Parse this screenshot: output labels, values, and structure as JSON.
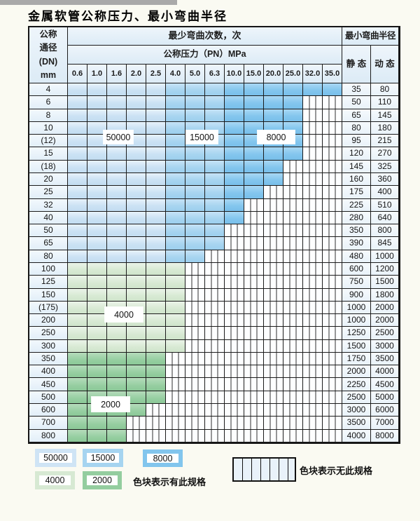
{
  "title": "金属软管公称压力、最小弯曲半径",
  "colors": {
    "cycles_50000": "#cfe4f5",
    "cycles_15000": "#a6d4f0",
    "cycles_8000": "#82c5ed",
    "cycles_4000": "#d7e9d3",
    "cycles_2000": "#94cd9f",
    "grid_line": "#1b1b1b"
  },
  "table": {
    "dn_header": "公称\n通径\n(DN)\nmm",
    "cycles_header": "最少弯曲次数，次",
    "pressure_header": "公称压力（PN）MPa",
    "radius_header": "最小弯曲半径",
    "static_label": "静 态",
    "dynamic_label": "动 态",
    "pressures": [
      "0.6",
      "1.0",
      "1.6",
      "2.0",
      "2.5",
      "4.0",
      "5.0",
      "6.3",
      "10.0",
      "15.0",
      "20.0",
      "25.0",
      "32.0",
      "35.0"
    ],
    "rows": [
      {
        "dn": "4",
        "max_pn": "35.0",
        "cols_available": 14,
        "zone": "blue",
        "static": "35",
        "dynamic": "80"
      },
      {
        "dn": "6",
        "max_pn": "25.0",
        "cols_available": 12,
        "zone": "blue",
        "static": "50",
        "dynamic": "110"
      },
      {
        "dn": "8",
        "max_pn": "25.0",
        "cols_available": 12,
        "zone": "blue",
        "static": "65",
        "dynamic": "145"
      },
      {
        "dn": "10",
        "max_pn": "25.0",
        "cols_available": 12,
        "zone": "blue",
        "static": "80",
        "dynamic": "180"
      },
      {
        "dn": "(12)",
        "max_pn": "25.0",
        "cols_available": 12,
        "zone": "blue",
        "static": "95",
        "dynamic": "215"
      },
      {
        "dn": "15",
        "max_pn": "25.0",
        "cols_available": 12,
        "zone": "blue",
        "static": "120",
        "dynamic": "270"
      },
      {
        "dn": "(18)",
        "max_pn": "20.0",
        "cols_available": 11,
        "zone": "blue",
        "static": "145",
        "dynamic": "325"
      },
      {
        "dn": "20",
        "max_pn": "20.0",
        "cols_available": 11,
        "zone": "blue",
        "static": "160",
        "dynamic": "360"
      },
      {
        "dn": "25",
        "max_pn": "15.0",
        "cols_available": 10,
        "zone": "blue",
        "static": "175",
        "dynamic": "400"
      },
      {
        "dn": "32",
        "max_pn": "10.0",
        "cols_available": 9,
        "zone": "blue",
        "static": "225",
        "dynamic": "510"
      },
      {
        "dn": "40",
        "max_pn": "10.0",
        "cols_available": 9,
        "zone": "blue",
        "static": "280",
        "dynamic": "640"
      },
      {
        "dn": "50",
        "max_pn": "6.3",
        "cols_available": 8,
        "zone": "blue",
        "static": "350",
        "dynamic": "800"
      },
      {
        "dn": "65",
        "max_pn": "6.3",
        "cols_available": 8,
        "zone": "blue",
        "static": "390",
        "dynamic": "845"
      },
      {
        "dn": "80",
        "max_pn": "5.0",
        "cols_available": 7,
        "zone": "blue",
        "static": "480",
        "dynamic": "1000"
      },
      {
        "dn": "100",
        "max_pn": "4.0",
        "cols_available": 6,
        "zone": "green4000",
        "static": "600",
        "dynamic": "1200"
      },
      {
        "dn": "125",
        "max_pn": "4.0",
        "cols_available": 6,
        "zone": "green4000",
        "static": "750",
        "dynamic": "1500"
      },
      {
        "dn": "150",
        "max_pn": "4.0",
        "cols_available": 6,
        "zone": "green4000",
        "static": "900",
        "dynamic": "1800"
      },
      {
        "dn": "(175)",
        "max_pn": "4.0",
        "cols_available": 6,
        "zone": "green4000",
        "static": "1000",
        "dynamic": "2000"
      },
      {
        "dn": "200",
        "max_pn": "4.0",
        "cols_available": 6,
        "zone": "green4000",
        "static": "1000",
        "dynamic": "2000"
      },
      {
        "dn": "250",
        "max_pn": "4.0",
        "cols_available": 6,
        "zone": "green4000",
        "static": "1250",
        "dynamic": "2500"
      },
      {
        "dn": "300",
        "max_pn": "4.0",
        "cols_available": 6,
        "zone": "green4000",
        "static": "1500",
        "dynamic": "3000"
      },
      {
        "dn": "350",
        "max_pn": "2.5",
        "cols_available": 5,
        "zone": "green2000",
        "static": "1750",
        "dynamic": "3500"
      },
      {
        "dn": "400",
        "max_pn": "2.5",
        "cols_available": 5,
        "zone": "green2000",
        "static": "2000",
        "dynamic": "4000"
      },
      {
        "dn": "450",
        "max_pn": "2.5",
        "cols_available": 5,
        "zone": "green2000",
        "static": "2250",
        "dynamic": "4500"
      },
      {
        "dn": "500",
        "max_pn": "2.5",
        "cols_available": 5,
        "zone": "green2000",
        "static": "2500",
        "dynamic": "5000"
      },
      {
        "dn": "600",
        "max_pn": "2.0",
        "cols_available": 4,
        "zone": "green2000",
        "static": "3000",
        "dynamic": "6000"
      },
      {
        "dn": "700",
        "max_pn": "1.6",
        "cols_available": 3,
        "zone": "green2000",
        "static": "3500",
        "dynamic": "7000"
      },
      {
        "dn": "800",
        "max_pn": "1.6",
        "cols_available": 3,
        "zone": "green2000",
        "static": "4000",
        "dynamic": "8000"
      }
    ]
  },
  "bands": {
    "b50000": "50000",
    "b15000": "15000",
    "b8000": "8000",
    "b4000": "4000",
    "b2000": "2000"
  },
  "legend": {
    "items": [
      {
        "value": "50000"
      },
      {
        "value": "15000"
      },
      {
        "value": "8000"
      },
      {
        "value": "4000"
      },
      {
        "value": "2000"
      }
    ],
    "available_note": "色块表示有此规格",
    "unavailable_note": "色块表示无此规格"
  }
}
